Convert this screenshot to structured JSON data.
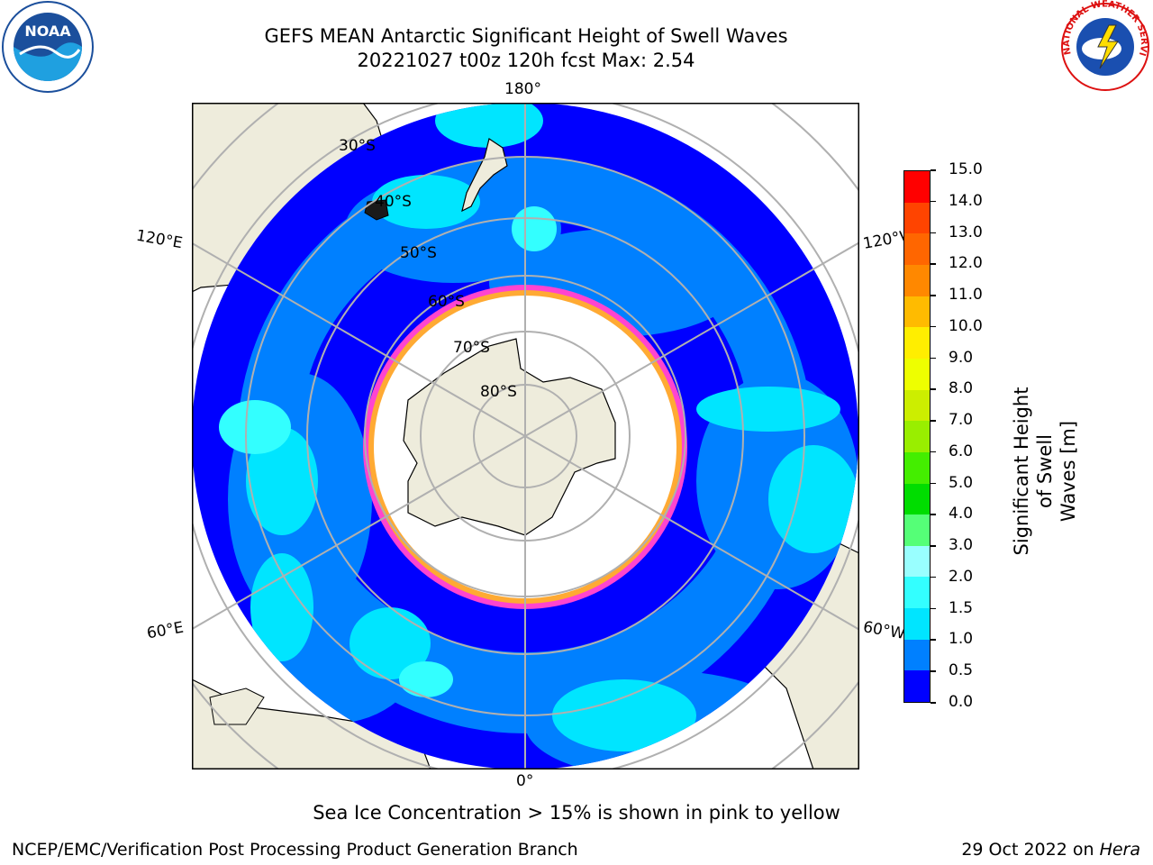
{
  "title_line1": "GEFS MEAN Antarctic Significant Height of Swell Waves",
  "title_line2": "20221027 t00z 120h fcst   Max: 2.54",
  "logos": {
    "left": "NOAA",
    "right": "NATIONAL WEATHER SERVICE"
  },
  "map": {
    "projection": "south-polar-stereographic",
    "lon_labels": {
      "top": "180°",
      "bottom": "0°",
      "left_upper": "120°E",
      "left_lower": "60°E",
      "right_upper": "120°W",
      "right_lower": "60°W"
    },
    "lat_labels": [
      "30°S",
      "40°S",
      "50°S",
      "60°S",
      "70°S",
      "80°S"
    ],
    "colors": {
      "land": "#eeecdc",
      "ice_edge": "#ff44d0",
      "ice_inner": "#ffaa33",
      "grid": "#b0b0b0"
    }
  },
  "colorbar": {
    "label": "Significant Height of Swell Waves [m]",
    "label_line1": "Significant Height of Swell",
    "label_line2": "Waves [m]",
    "ticks": [
      "0.0",
      "0.5",
      "1.0",
      "1.5",
      "2.0",
      "3.0",
      "4.0",
      "5.0",
      "6.0",
      "7.0",
      "8.0",
      "9.0",
      "10.0",
      "11.0",
      "12.0",
      "13.0",
      "14.0",
      "15.0"
    ],
    "colors": [
      "#0000ff",
      "#0080ff",
      "#00e5ff",
      "#33ffff",
      "#99ffff",
      "#55ff77",
      "#00dd00",
      "#44ee00",
      "#99ee00",
      "#ccee00",
      "#eeff00",
      "#ffee00",
      "#ffbb00",
      "#ff8800",
      "#ff6600",
      "#ff4400",
      "#ff0000"
    ]
  },
  "caption": "Sea Ice Concentration > 15% is shown in pink to yellow",
  "footer_left": "NCEP/EMC/Verification Post Processing Product Generation Branch",
  "footer_right_prefix": "29 Oct 2022 on ",
  "footer_right_host": "Hera"
}
